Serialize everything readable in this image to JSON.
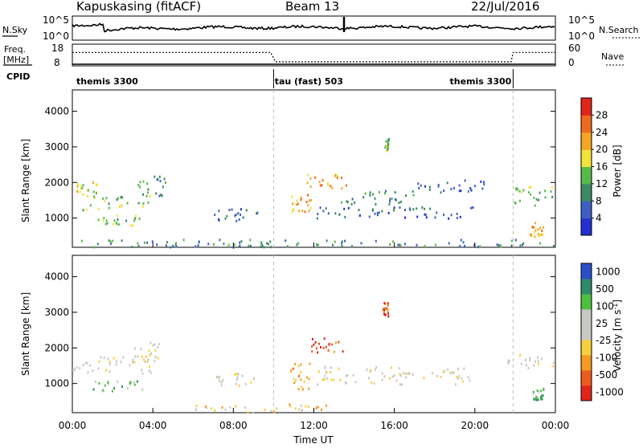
{
  "header": {
    "radar": "Kapuskasing (fitACF)",
    "beam": "Beam 13",
    "date": "22/Jul/2016"
  },
  "noise_panel": {
    "left_label": "N.Sky",
    "right_label": "N.Search",
    "left_ticks": [
      "10^5",
      "10^0"
    ],
    "right_ticks": [
      "10^5",
      "10^0"
    ]
  },
  "freq_panel": {
    "left_label_1": "Freq.",
    "left_label_2": "[MHz]",
    "right_label": "Nave",
    "left_ticks": [
      "18",
      "8"
    ],
    "right_ticks": [
      "60",
      "0"
    ],
    "freq_line": [
      {
        "x": 0,
        "y": 9
      },
      {
        "x": 9.85,
        "y": 9
      },
      {
        "x": 10.1,
        "y": 9
      },
      {
        "x": 21.8,
        "y": 9
      },
      {
        "x": 24,
        "y": 9
      }
    ],
    "nave_line": [
      {
        "x": 0,
        "y": 40
      },
      {
        "x": 9.85,
        "y": 40
      },
      {
        "x": 10.1,
        "y": 12
      },
      {
        "x": 21.8,
        "y": 12
      },
      {
        "x": 21.9,
        "y": 40
      },
      {
        "x": 24,
        "y": 40
      }
    ]
  },
  "cpid": {
    "label": "CPID",
    "modes": [
      {
        "text": "themis 3300",
        "at": 0.2
      },
      {
        "text": "tau (fast) 503",
        "at": 10.05
      },
      {
        "text": "themis 3300",
        "at": 18.75
      }
    ],
    "boundaries": [
      10.0,
      21.9
    ]
  },
  "chart_data": [
    {
      "type": "heatmap",
      "ylabel": "Slant Range [km]",
      "yticks": [
        1000,
        2000,
        3000,
        4000
      ],
      "ylim": [
        180,
        4600
      ],
      "xlim": [
        0,
        24
      ],
      "colorbar_label": "Power [dB]",
      "colorbar_ticks": [
        "4",
        "8",
        "12",
        "16",
        "20",
        "24",
        "28"
      ],
      "colors": [
        "#2431d0",
        "#3f5fc4",
        "#3c8a63",
        "#58b94a",
        "#f2e23a",
        "#f5a623",
        "#ee6a1e",
        "#e0251b"
      ],
      "regions": [
        {
          "x0": 0.2,
          "x1": 1.2,
          "y0": 1600,
          "y1": 2050,
          "level": 4
        },
        {
          "x0": 0.5,
          "x1": 3.9,
          "y0": 1250,
          "y1": 1650,
          "level": 3
        },
        {
          "x0": 1.0,
          "x1": 3.5,
          "y0": 820,
          "y1": 1100,
          "level": 3
        },
        {
          "x0": 3.2,
          "x1": 4.6,
          "y0": 1650,
          "y1": 2200,
          "level": 2
        },
        {
          "x0": 7.0,
          "x1": 9.2,
          "y0": 950,
          "y1": 1300,
          "level": 1
        },
        {
          "x0": 10.8,
          "x1": 11.9,
          "y0": 1200,
          "y1": 1700,
          "level": 5
        },
        {
          "x0": 11.5,
          "x1": 13.6,
          "y0": 1850,
          "y1": 2250,
          "level": 5
        },
        {
          "x0": 12.0,
          "x1": 20.0,
          "y0": 1000,
          "y1": 1350,
          "level": 1
        },
        {
          "x0": 13.0,
          "x1": 17.0,
          "y0": 1400,
          "y1": 1800,
          "level": 2
        },
        {
          "x0": 17.0,
          "x1": 21.0,
          "y0": 1750,
          "y1": 2100,
          "level": 1
        },
        {
          "x0": 15.5,
          "x1": 15.7,
          "y0": 2900,
          "y1": 3300,
          "level": 3
        },
        {
          "x0": 21.6,
          "x1": 23.9,
          "y0": 1350,
          "y1": 1900,
          "level": 3
        },
        {
          "x0": 22.7,
          "x1": 23.4,
          "y0": 500,
          "y1": 900,
          "level": 5
        },
        {
          "x0": 0.2,
          "x1": 23.9,
          "y0": 200,
          "y1": 420,
          "level": 2
        }
      ]
    },
    {
      "type": "heatmap",
      "ylabel": "Slant Range [km]",
      "yticks": [
        1000,
        2000,
        3000,
        4000
      ],
      "ylim": [
        180,
        4600
      ],
      "xlim": [
        0,
        24
      ],
      "xticks": [
        "00:00",
        "04:00",
        "08:00",
        "12:00",
        "16:00",
        "20:00",
        "00:00"
      ],
      "xlabel": "Time UT",
      "colorbar_label": "Velocity [m s^-1]",
      "colorbar_label_base": "Velocity [m s",
      "colorbar_label_exp": "-1",
      "colorbar_label_end": "]",
      "colorbar_ticks": [
        "1000",
        "500",
        "100",
        "25",
        "-25",
        "-100",
        "-500",
        "-1000"
      ],
      "colors": [
        "#e0251b",
        "#ee5a1e",
        "#f29a22",
        "#f7cf3a",
        "#c8c8c4",
        "#c8c8c4",
        "#4fbf3f",
        "#2f8a6a",
        "#2a4ec8"
      ],
      "regions": [
        {
          "x0": 0.0,
          "x1": 4.0,
          "y0": 1300,
          "y1": 1800,
          "level": 4
        },
        {
          "x0": 1.0,
          "x1": 3.5,
          "y0": 800,
          "y1": 1100,
          "level": 6
        },
        {
          "x0": 3.0,
          "x1": 4.3,
          "y0": 1600,
          "y1": 2200,
          "level": 4
        },
        {
          "x0": 7.0,
          "x1": 9.2,
          "y0": 950,
          "y1": 1300,
          "level": 4
        },
        {
          "x0": 10.8,
          "x1": 11.8,
          "y0": 800,
          "y1": 1600,
          "level": 2
        },
        {
          "x0": 11.6,
          "x1": 13.6,
          "y0": 1850,
          "y1": 2300,
          "level": 1
        },
        {
          "x0": 15.4,
          "x1": 15.7,
          "y0": 2900,
          "y1": 3300,
          "level": 1
        },
        {
          "x0": 12.0,
          "x1": 20.0,
          "y0": 1000,
          "y1": 1500,
          "level": 4
        },
        {
          "x0": 21.6,
          "x1": 23.9,
          "y0": 1450,
          "y1": 1850,
          "level": 4
        },
        {
          "x0": 22.8,
          "x1": 23.4,
          "y0": 550,
          "y1": 900,
          "level": 6
        },
        {
          "x0": 6.0,
          "x1": 13.0,
          "y0": 200,
          "y1": 450,
          "level": 3
        }
      ]
    }
  ]
}
